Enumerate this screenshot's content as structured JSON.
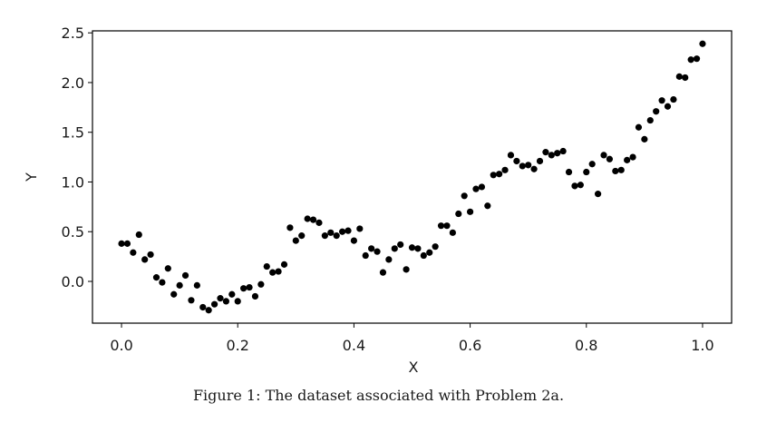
{
  "caption": "Figure 1: The dataset associated with Problem 2a.",
  "chart_data": {
    "type": "scatter",
    "xlabel": "X",
    "ylabel": "Y",
    "xlim": [
      -0.05,
      1.05
    ],
    "ylim": [
      -0.42,
      2.52
    ],
    "xticks": [
      0.0,
      0.2,
      0.4,
      0.6,
      0.8,
      1.0
    ],
    "xtick_labels": [
      "0.0",
      "0.2",
      "0.4",
      "0.6",
      "0.8",
      "1.0"
    ],
    "yticks": [
      0.0,
      0.5,
      1.0,
      1.5,
      2.0,
      2.5
    ],
    "ytick_labels": [
      "0.0",
      "0.5",
      "1.0",
      "1.5",
      "2.0",
      "2.5"
    ],
    "grid": false,
    "marker_color": "#000000",
    "series": [
      {
        "x": [
          0.0,
          0.01,
          0.02,
          0.03,
          0.04,
          0.05,
          0.06,
          0.07,
          0.08,
          0.09,
          0.1,
          0.11,
          0.12,
          0.13,
          0.14,
          0.15,
          0.16,
          0.17,
          0.18,
          0.19,
          0.2,
          0.21,
          0.22,
          0.23,
          0.24,
          0.25,
          0.26,
          0.27,
          0.28,
          0.29,
          0.3,
          0.31,
          0.32,
          0.33,
          0.34,
          0.35,
          0.36,
          0.37,
          0.38,
          0.39,
          0.4,
          0.41,
          0.42,
          0.43,
          0.44,
          0.45,
          0.46,
          0.47,
          0.48,
          0.49,
          0.5,
          0.51,
          0.52,
          0.53,
          0.54,
          0.55,
          0.56,
          0.57,
          0.58,
          0.59,
          0.6,
          0.61,
          0.62,
          0.63,
          0.64,
          0.65,
          0.66,
          0.67,
          0.68,
          0.69,
          0.7,
          0.71,
          0.72,
          0.73,
          0.74,
          0.75,
          0.76,
          0.77,
          0.78,
          0.79,
          0.8,
          0.81,
          0.82,
          0.83,
          0.84,
          0.85,
          0.86,
          0.87,
          0.88,
          0.89,
          0.9,
          0.91,
          0.92,
          0.93,
          0.94,
          0.95,
          0.96,
          0.97,
          0.98,
          0.99,
          1.0
        ],
        "y": [
          0.38,
          0.38,
          0.29,
          0.47,
          0.22,
          0.27,
          0.04,
          -0.01,
          0.13,
          -0.13,
          -0.04,
          0.06,
          -0.19,
          -0.04,
          -0.26,
          -0.29,
          -0.23,
          -0.17,
          -0.2,
          -0.13,
          -0.2,
          -0.07,
          -0.06,
          -0.15,
          -0.03,
          0.15,
          0.09,
          0.1,
          0.17,
          0.54,
          0.41,
          0.46,
          0.63,
          0.62,
          0.59,
          0.46,
          0.49,
          0.46,
          0.5,
          0.51,
          0.41,
          0.53,
          0.26,
          0.33,
          0.3,
          0.09,
          0.22,
          0.33,
          0.37,
          0.12,
          0.34,
          0.33,
          0.26,
          0.29,
          0.35,
          0.56,
          0.56,
          0.49,
          0.68,
          0.86,
          0.7,
          0.93,
          0.95,
          0.76,
          1.07,
          1.08,
          1.12,
          1.27,
          1.21,
          1.16,
          1.17,
          1.13,
          1.21,
          1.3,
          1.27,
          1.29,
          1.31,
          1.1,
          0.96,
          0.97,
          1.1,
          1.18,
          0.88,
          1.27,
          1.23,
          1.11,
          1.12,
          1.22,
          1.25,
          1.55,
          1.43,
          1.62,
          1.71,
          1.82,
          1.76,
          1.83,
          2.06,
          2.05,
          2.23,
          2.24,
          2.39
        ]
      }
    ]
  }
}
